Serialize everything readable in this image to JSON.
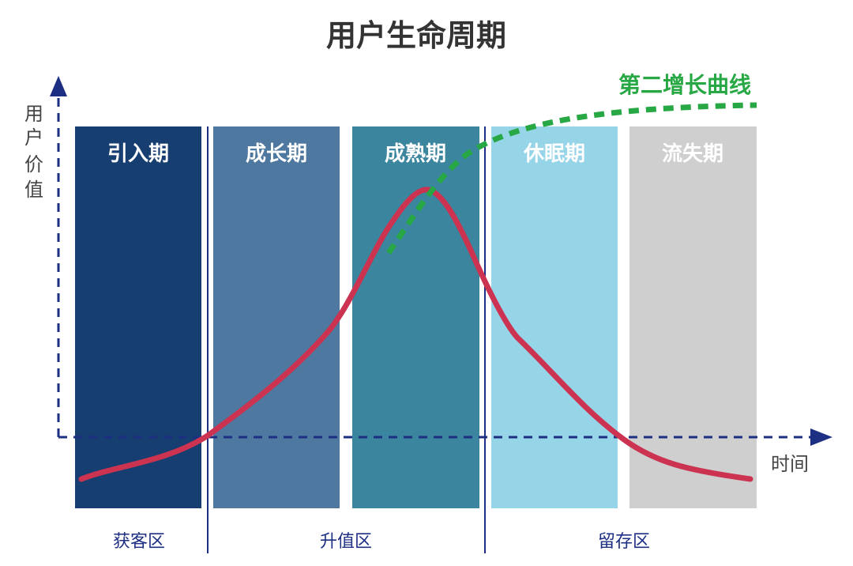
{
  "title": "用户生命周期",
  "axes": {
    "y_label": [
      "用",
      "户",
      "价",
      "值"
    ],
    "x_label": "时间"
  },
  "stages": [
    {
      "label": "引入期",
      "color": "#163e70"
    },
    {
      "label": "成长期",
      "color": "#4f78a0"
    },
    {
      "label": "成熟期",
      "color": "#3b859e"
    },
    {
      "label": "休眠期",
      "color": "#96d4e8"
    },
    {
      "label": "流失期",
      "color": "#cfcfcf"
    }
  ],
  "zones": [
    {
      "label": "获客区"
    },
    {
      "label": "升值区"
    },
    {
      "label": "留存区"
    }
  ],
  "curves": {
    "lifecycle_color": "#cc3350",
    "second_curve_label": "第二增长曲线",
    "second_curve_color": "#27a844"
  },
  "colors": {
    "axis": "#1d2f82",
    "divider": "#1d2f82",
    "text_dark": "#333333",
    "label_gray": "#444444"
  }
}
